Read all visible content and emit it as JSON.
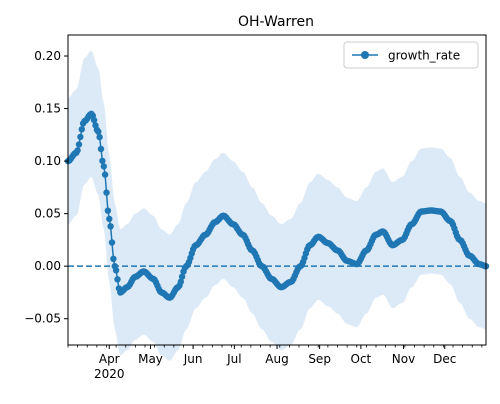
{
  "chart_data": {
    "type": "line",
    "title": "OH-Warren",
    "xlabel": "",
    "ylabel": "",
    "x_range": [
      "2020-03-02",
      "2020-12-31"
    ],
    "ylim": [
      -0.075,
      0.22
    ],
    "y_ticks": [
      -0.05,
      0.0,
      0.05,
      0.1,
      0.15,
      0.2
    ],
    "y_tick_labels": [
      "−0.05",
      "0.00",
      "0.05",
      "0.10",
      "0.15",
      "0.20"
    ],
    "x_ticks": [
      {
        "date": "2020-04-01",
        "label": "Apr",
        "sublabel": "2020"
      },
      {
        "date": "2020-05-01",
        "label": "May"
      },
      {
        "date": "2020-06-01",
        "label": "Jun"
      },
      {
        "date": "2020-07-01",
        "label": "Jul"
      },
      {
        "date": "2020-08-01",
        "label": "Aug"
      },
      {
        "date": "2020-09-01",
        "label": "Sep"
      },
      {
        "date": "2020-10-01",
        "label": "Oct"
      },
      {
        "date": "2020-11-01",
        "label": "Nov"
      },
      {
        "date": "2020-12-01",
        "label": "Dec"
      }
    ],
    "grid": false,
    "legend_position": "top-right",
    "reference_line": {
      "y": 0.0,
      "style": "dashed"
    },
    "colors": {
      "line": "#1f77b4",
      "band": "#dce9f6"
    },
    "series": [
      {
        "name": "growth_rate",
        "band_offset": 0.06,
        "points": [
          [
            "2020-03-02",
            0.1
          ],
          [
            "2020-03-08",
            0.108
          ],
          [
            "2020-03-14",
            0.138
          ],
          [
            "2020-03-19",
            0.145
          ],
          [
            "2020-03-24",
            0.128
          ],
          [
            "2020-03-28",
            0.095
          ],
          [
            "2020-04-01",
            0.045
          ],
          [
            "2020-04-05",
            0.0
          ],
          [
            "2020-04-09",
            -0.025
          ],
          [
            "2020-04-14",
            -0.02
          ],
          [
            "2020-04-20",
            -0.01
          ],
          [
            "2020-04-26",
            -0.005
          ],
          [
            "2020-05-03",
            -0.012
          ],
          [
            "2020-05-09",
            -0.025
          ],
          [
            "2020-05-15",
            -0.03
          ],
          [
            "2020-05-21",
            -0.02
          ],
          [
            "2020-05-27",
            0.0
          ],
          [
            "2020-06-03",
            0.02
          ],
          [
            "2020-06-10",
            0.03
          ],
          [
            "2020-06-17",
            0.042
          ],
          [
            "2020-06-23",
            0.048
          ],
          [
            "2020-06-30",
            0.04
          ],
          [
            "2020-07-07",
            0.03
          ],
          [
            "2020-07-14",
            0.015
          ],
          [
            "2020-07-21",
            0.0
          ],
          [
            "2020-07-28",
            -0.012
          ],
          [
            "2020-08-04",
            -0.02
          ],
          [
            "2020-08-11",
            -0.015
          ],
          [
            "2020-08-18",
            0.0
          ],
          [
            "2020-08-25",
            0.02
          ],
          [
            "2020-08-31",
            0.028
          ],
          [
            "2020-09-07",
            0.022
          ],
          [
            "2020-09-14",
            0.015
          ],
          [
            "2020-09-21",
            0.005
          ],
          [
            "2020-09-28",
            0.002
          ],
          [
            "2020-10-05",
            0.015
          ],
          [
            "2020-10-12",
            0.03
          ],
          [
            "2020-10-17",
            0.033
          ],
          [
            "2020-10-24",
            0.02
          ],
          [
            "2020-10-31",
            0.025
          ],
          [
            "2020-11-07",
            0.04
          ],
          [
            "2020-11-14",
            0.052
          ],
          [
            "2020-11-21",
            0.053
          ],
          [
            "2020-11-28",
            0.052
          ],
          [
            "2020-12-05",
            0.043
          ],
          [
            "2020-12-12",
            0.025
          ],
          [
            "2020-12-19",
            0.01
          ],
          [
            "2020-12-26",
            0.002
          ],
          [
            "2020-12-31",
            0.0
          ]
        ]
      }
    ]
  }
}
